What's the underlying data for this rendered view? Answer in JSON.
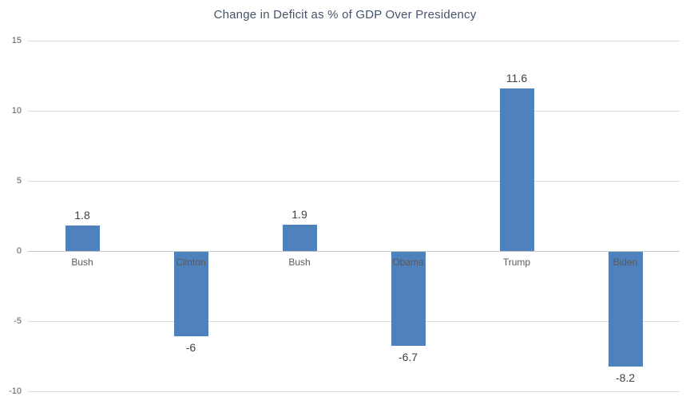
{
  "chart_data": {
    "type": "bar",
    "title": "Change in Deficit as % of GDP Over Presidency",
    "categories": [
      "Bush",
      "Clinton",
      "Bush",
      "Obama",
      "Trump",
      "Biden"
    ],
    "values": [
      1.8,
      -6,
      1.9,
      -6.7,
      11.6,
      -8.2
    ],
    "data_labels": [
      "1.8",
      "-6",
      "1.9",
      "-6.7",
      "11.6",
      "-8.2"
    ],
    "y_ticks": [
      15,
      10,
      5,
      0,
      -5,
      -10
    ],
    "ylim": [
      -10,
      15
    ],
    "xlabel": "",
    "ylabel": "",
    "grid": true,
    "legend_position": "none",
    "bar_color": "#4f81bd",
    "title_color": "#44546a",
    "value_label_color": "#404040",
    "axis_text_color": "#595959",
    "gridline_color": "#d9d9d9",
    "axis_line_color": "#c6c6c6",
    "background_color": "#ffffff"
  }
}
